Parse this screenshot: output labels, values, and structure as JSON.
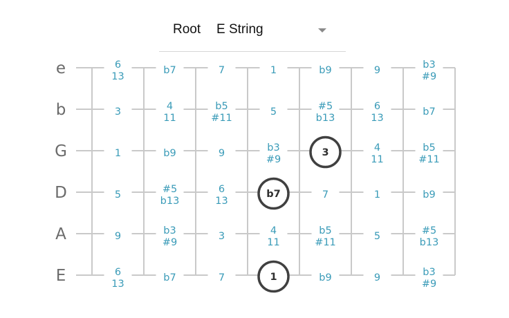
{
  "selector": {
    "label": "Root",
    "value": "E String",
    "icon": "chevron-down-icon"
  },
  "colors": {
    "line": "#c9c9c9",
    "interval_text": "#3a9bb8",
    "string_label": "#6b6b6b",
    "marker_ring": "#404040"
  },
  "strings": [
    {
      "name": "e",
      "cells": [
        [
          "6",
          "13"
        ],
        [
          "b7"
        ],
        [
          "7"
        ],
        [
          "1"
        ],
        [
          "b9"
        ],
        [
          "9"
        ],
        [
          "b3",
          "#9"
        ]
      ]
    },
    {
      "name": "b",
      "cells": [
        [
          "3"
        ],
        [
          "4",
          "11"
        ],
        [
          "b5",
          "#11"
        ],
        [
          "5"
        ],
        [
          "#5",
          "b13"
        ],
        [
          "6",
          "13"
        ],
        [
          "b7"
        ]
      ]
    },
    {
      "name": "G",
      "cells": [
        [
          "1"
        ],
        [
          "b9"
        ],
        [
          "9"
        ],
        [
          "b3",
          "#9"
        ],
        [
          "3"
        ],
        [
          "4",
          "11"
        ],
        [
          "b5",
          "#11"
        ]
      ]
    },
    {
      "name": "D",
      "cells": [
        [
          "5"
        ],
        [
          "#5",
          "b13"
        ],
        [
          "6",
          "13"
        ],
        [
          "b7"
        ],
        [
          "7"
        ],
        [
          "1"
        ],
        [
          "b9"
        ]
      ]
    },
    {
      "name": "A",
      "cells": [
        [
          "9"
        ],
        [
          "b3",
          "#9"
        ],
        [
          "3"
        ],
        [
          "4",
          "11"
        ],
        [
          "b5",
          "#11"
        ],
        [
          "5"
        ],
        [
          "#5",
          "b13"
        ]
      ]
    },
    {
      "name": "E",
      "cells": [
        [
          "6",
          "13"
        ],
        [
          "b7"
        ],
        [
          "7"
        ],
        [
          "1"
        ],
        [
          "b9"
        ],
        [
          "9"
        ],
        [
          "b3",
          "#9"
        ]
      ]
    }
  ],
  "highlighted": [
    {
      "string": 2,
      "fret": 4
    },
    {
      "string": 3,
      "fret": 3
    },
    {
      "string": 5,
      "fret": 3
    }
  ]
}
